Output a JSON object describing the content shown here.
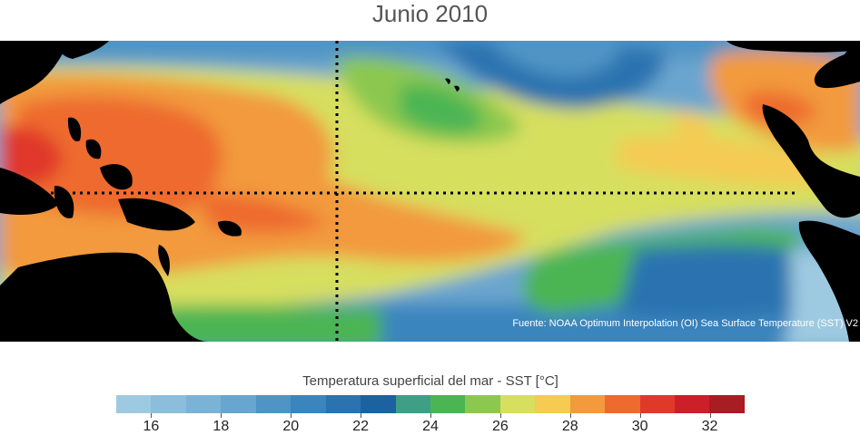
{
  "title": "Junio 2010",
  "source_note": "Fuente: NOAA Optimum Interpolation (OI) Sea Surface Temperature (SST) V2",
  "colorbar": {
    "label": "Temperatura superficial del mar - SST  [°C]",
    "min": 15,
    "max": 33,
    "colors": [
      "#9ecae1",
      "#8cbedb",
      "#7ab3d6",
      "#68a6d0",
      "#4f94c5",
      "#3a85be",
      "#2a73b0",
      "#1d62a0",
      "#3f9e86",
      "#4cb553",
      "#8cc850",
      "#d7df5e",
      "#f5cb52",
      "#f29a3c",
      "#ee6a2e",
      "#e0392a",
      "#cc1f2a",
      "#a81c24"
    ],
    "ticks": [
      16,
      18,
      20,
      22,
      24,
      26,
      28,
      30,
      32
    ]
  }
}
